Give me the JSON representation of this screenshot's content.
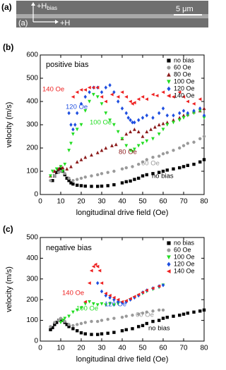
{
  "panel_a": {
    "label": "(a)",
    "inner_label": "(a)",
    "bias_field": {
      "main": "+H",
      "sub": "bias"
    },
    "drive_field": "+H",
    "scale_bar": "5 μm"
  },
  "chart_data": [
    {
      "type": "scatter",
      "panel_label": "(b)",
      "xlabel": "longitudinal drive field (Oe)",
      "ylabel": "velocity (m/s)",
      "xlim": [
        0,
        80
      ],
      "xticks": [
        0,
        10,
        20,
        30,
        40,
        50,
        60,
        70,
        80
      ],
      "ylim": [
        0,
        600
      ],
      "yticks": [
        0,
        100,
        200,
        300,
        400,
        500,
        600
      ],
      "legend": "top-right",
      "annotations": [
        "positive bias",
        "140 Oe",
        "120 Oe",
        "100 Oe",
        "80 Oe",
        "60 Oe",
        "no bias"
      ],
      "series": [
        {
          "name": "no bias",
          "color": "#000000",
          "marker": "square",
          "x": [
            6,
            7,
            8,
            9,
            10,
            11,
            12,
            13,
            14,
            15,
            16,
            18,
            20,
            22,
            25,
            28,
            30,
            33,
            36,
            40,
            42,
            44,
            46,
            48,
            50,
            52,
            55,
            58,
            60,
            62,
            65,
            68,
            70,
            72,
            75,
            78,
            80
          ],
          "values": [
            60,
            80,
            95,
            105,
            110,
            100,
            85,
            70,
            60,
            50,
            45,
            40,
            38,
            36,
            35,
            35,
            36,
            38,
            42,
            50,
            55,
            58,
            65,
            70,
            80,
            85,
            90,
            95,
            100,
            105,
            110,
            115,
            120,
            125,
            130,
            140,
            150
          ]
        },
        {
          "name": "60 Oe",
          "color": "#9a9a9a",
          "marker": "circle",
          "x": [
            5,
            7,
            9,
            10,
            12,
            14,
            16,
            18,
            20,
            22,
            25,
            28,
            30,
            33,
            36,
            40,
            42,
            45,
            48,
            50,
            52,
            55,
            58,
            60,
            62,
            65,
            68,
            70,
            72,
            75,
            78,
            80
          ],
          "values": [
            60,
            80,
            95,
            100,
            90,
            70,
            60,
            65,
            70,
            75,
            80,
            85,
            90,
            95,
            100,
            110,
            115,
            120,
            130,
            140,
            150,
            160,
            165,
            175,
            180,
            190,
            200,
            210,
            220,
            225,
            240,
            250
          ]
        },
        {
          "name": "80 Oe",
          "color": "#8b1a1a",
          "marker": "triangle-up",
          "x": [
            5,
            7,
            9,
            10,
            11,
            13,
            15,
            18,
            20,
            22,
            25,
            28,
            30,
            32,
            35,
            37,
            40,
            42,
            44,
            46,
            48,
            50,
            52,
            54,
            56,
            58,
            60,
            62,
            65,
            68,
            70,
            72,
            75,
            78,
            80
          ],
          "values": [
            80,
            100,
            110,
            120,
            115,
            110,
            120,
            140,
            150,
            160,
            170,
            180,
            190,
            200,
            210,
            215,
            240,
            260,
            270,
            280,
            270,
            250,
            270,
            280,
            290,
            300,
            305,
            310,
            320,
            330,
            340,
            345,
            355,
            360,
            370
          ]
        },
        {
          "name": "100 Oe",
          "color": "#22dd22",
          "marker": "triangle-down",
          "x": [
            5,
            6,
            8,
            10,
            11,
            12,
            14,
            15,
            16,
            18,
            20,
            22,
            24,
            26,
            28,
            30,
            32,
            34,
            36,
            38,
            40,
            42,
            44,
            45,
            46,
            48,
            50,
            52,
            55,
            58,
            60,
            62,
            65,
            68,
            70,
            72,
            75,
            78,
            80
          ],
          "values": [
            80,
            100,
            110,
            120,
            100,
            130,
            190,
            220,
            260,
            280,
            300,
            360,
            400,
            430,
            420,
            390,
            350,
            320,
            300,
            270,
            240,
            210,
            190,
            185,
            195,
            210,
            220,
            230,
            240,
            260,
            280,
            300,
            310,
            320,
            330,
            340,
            350,
            360,
            330
          ]
        },
        {
          "name": "120 Oe",
          "color": "#1f4fe0",
          "marker": "diamond",
          "x": [
            14,
            15,
            16,
            17,
            18,
            20,
            22,
            24,
            26,
            28,
            30,
            32,
            34,
            36,
            38,
            40,
            42,
            43,
            44,
            45,
            46,
            48,
            50,
            52,
            55,
            58,
            60,
            62,
            65,
            68,
            70,
            72,
            75,
            78,
            80
          ],
          "values": [
            350,
            300,
            280,
            300,
            350,
            390,
            420,
            440,
            460,
            460,
            440,
            460,
            470,
            440,
            400,
            370,
            350,
            330,
            320,
            310,
            310,
            320,
            330,
            340,
            330,
            350,
            370,
            340,
            340,
            350,
            360,
            350,
            360,
            370,
            340
          ]
        },
        {
          "name": "140 Oe",
          "color": "#ee2222",
          "marker": "triangle-left",
          "x": [
            16,
            18,
            20,
            22,
            24,
            26,
            28,
            30,
            32,
            35,
            38,
            40,
            42,
            44,
            45,
            46,
            48,
            50,
            52,
            55,
            57,
            60,
            65,
            68,
            70,
            72,
            75,
            78
          ],
          "values": [
            420,
            440,
            450,
            450,
            460,
            460,
            460,
            420,
            400,
            430,
            420,
            440,
            420,
            400,
            390,
            395,
            410,
            420,
            410,
            430,
            425,
            440,
            420,
            440,
            420,
            400,
            390,
            410
          ]
        }
      ]
    },
    {
      "type": "scatter",
      "panel_label": "(c)",
      "xlabel": "longitudinal drive field (Oe)",
      "ylabel": "velocity (m/s)",
      "xlim": [
        0,
        80
      ],
      "xticks": [
        0,
        10,
        20,
        30,
        40,
        50,
        60,
        70,
        80
      ],
      "ylim": [
        0,
        500
      ],
      "yticks": [
        0,
        100,
        200,
        300,
        400,
        500
      ],
      "legend": "top-right",
      "annotations": [
        "negative bias",
        "140 Oe",
        "120 Oe",
        "100 Oe",
        "60 Oe",
        "no bias"
      ],
      "series": [
        {
          "name": "no bias",
          "color": "#000000",
          "marker": "square",
          "x": [
            5,
            6,
            7,
            8,
            9,
            10,
            11,
            12,
            13,
            14,
            16,
            18,
            20,
            22,
            25,
            28,
            30,
            33,
            36,
            40,
            42,
            45,
            48,
            50,
            52,
            55,
            58,
            60,
            62,
            65,
            68,
            70,
            72,
            75,
            78,
            80
          ],
          "values": [
            55,
            65,
            80,
            90,
            100,
            105,
            100,
            90,
            80,
            70,
            60,
            50,
            40,
            35,
            32,
            32,
            35,
            38,
            42,
            50,
            55,
            60,
            70,
            75,
            85,
            95,
            100,
            110,
            115,
            120,
            125,
            130,
            135,
            140,
            145,
            150
          ]
        },
        {
          "name": "60 Oe",
          "color": "#9a9a9a",
          "marker": "circle",
          "x": [
            5,
            7,
            9,
            10,
            12,
            14,
            16,
            18,
            20,
            22,
            25,
            28,
            30,
            33,
            36,
            40,
            42,
            45,
            48,
            50,
            52,
            55,
            58,
            60
          ],
          "values": [
            70,
            90,
            100,
            110,
            95,
            80,
            75,
            80,
            85,
            90,
            95,
            95,
            100,
            105,
            110,
            115,
            120,
            125,
            130,
            135,
            140,
            145,
            150,
            150
          ]
        },
        {
          "name": "100 Oe",
          "color": "#22dd22",
          "marker": "triangle-down",
          "x": [
            10,
            11,
            12,
            14,
            16,
            18,
            20,
            22,
            24,
            26,
            28,
            30,
            32,
            34,
            36,
            38,
            40,
            42,
            44,
            46,
            48,
            50,
            52,
            55,
            58,
            60
          ],
          "values": [
            90,
            100,
            110,
            120,
            140,
            150,
            160,
            180,
            190,
            180,
            175,
            180,
            175,
            180,
            175,
            180,
            185,
            190,
            200,
            210,
            220,
            230,
            240,
            250,
            260,
            270
          ]
        },
        {
          "name": "120 Oe",
          "color": "#1f4fe0",
          "marker": "diamond",
          "x": [
            28,
            30,
            32,
            34,
            36,
            38,
            40,
            42,
            44,
            46,
            48,
            50,
            52,
            55,
            58,
            60
          ],
          "values": [
            280,
            240,
            220,
            210,
            200,
            190,
            185,
            190,
            200,
            210,
            220,
            235,
            245,
            255,
            265,
            270
          ]
        },
        {
          "name": "140 Oe",
          "color": "#ee2222",
          "marker": "triangle-left",
          "x": [
            22,
            24,
            25,
            26,
            27,
            28,
            29,
            30,
            32,
            34,
            36,
            38,
            40,
            42,
            44,
            46,
            48,
            50,
            52,
            55,
            58
          ],
          "values": [
            190,
            280,
            340,
            360,
            370,
            360,
            340,
            280,
            230,
            220,
            210,
            200,
            190,
            195,
            205,
            215,
            225,
            235,
            245,
            255,
            265
          ]
        }
      ]
    }
  ]
}
